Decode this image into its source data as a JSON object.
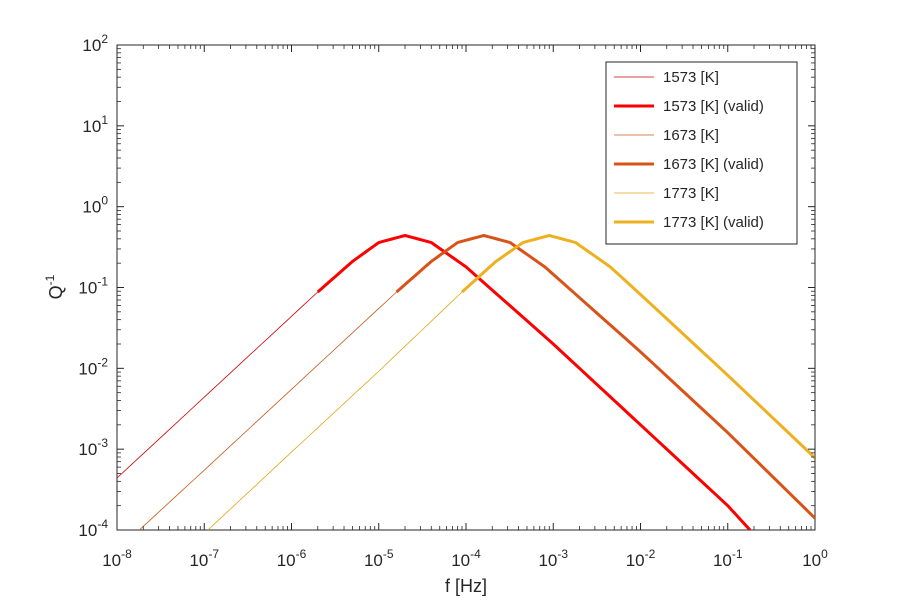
{
  "chart_data": {
    "type": "line",
    "xlabel": "f [Hz]",
    "ylabel": "Q",
    "ylabel_superscript": "-1",
    "xscale": "log",
    "yscale": "log",
    "xlim": [
      1e-08,
      1
    ],
    "ylim": [
      0.0001,
      100
    ],
    "grid": false,
    "legend_position": "top-right",
    "x_ticks": [
      {
        "base": "10",
        "exp": "-8",
        "value": 1e-08
      },
      {
        "base": "10",
        "exp": "-7",
        "value": 1e-07
      },
      {
        "base": "10",
        "exp": "-6",
        "value": 1e-06
      },
      {
        "base": "10",
        "exp": "-5",
        "value": 1e-05
      },
      {
        "base": "10",
        "exp": "-4",
        "value": 0.0001
      },
      {
        "base": "10",
        "exp": "-3",
        "value": 0.001
      },
      {
        "base": "10",
        "exp": "-2",
        "value": 0.01
      },
      {
        "base": "10",
        "exp": "-1",
        "value": 0.1
      },
      {
        "base": "10",
        "exp": "0",
        "value": 1
      }
    ],
    "y_ticks": [
      {
        "base": "10",
        "exp": "-4",
        "value": 0.0001
      },
      {
        "base": "10",
        "exp": "-3",
        "value": 0.001
      },
      {
        "base": "10",
        "exp": "-2",
        "value": 0.01
      },
      {
        "base": "10",
        "exp": "-1",
        "value": 0.1
      },
      {
        "base": "10",
        "exp": "0",
        "value": 1
      },
      {
        "base": "10",
        "exp": "1",
        "value": 10
      },
      {
        "base": "10",
        "exp": "2",
        "value": 100
      }
    ],
    "series": [
      {
        "name": "1573 [K]",
        "valid_name": "1573 [K] (valid)",
        "color": "#cc0000",
        "valid_color": "#ff0000",
        "points": [
          [
            1e-08,
            0.00044
          ],
          [
            2e-07,
            0.0088
          ],
          [
            2e-06,
            0.088
          ],
          [
            5e-06,
            0.21
          ],
          [
            1e-05,
            0.36
          ],
          [
            2e-05,
            0.44
          ],
          [
            4e-05,
            0.36
          ],
          [
            0.0001,
            0.18
          ],
          [
            0.001,
            0.02
          ],
          [
            0.01,
            0.002
          ],
          [
            0.1,
            0.0002
          ],
          [
            0.18,
            0.0001
          ]
        ],
        "valid_range": [
          2e-06,
          0.18
        ]
      },
      {
        "name": "1673 [K]",
        "valid_name": "1673 [K] (valid)",
        "color": "#c65a1a",
        "valid_color": "#d95319",
        "points": [
          [
            1.8e-08,
            0.0001
          ],
          [
            1e-07,
            0.00055
          ],
          [
            1e-06,
            0.0055
          ],
          [
            1.6e-05,
            0.088
          ],
          [
            4e-05,
            0.21
          ],
          [
            8e-05,
            0.36
          ],
          [
            0.00016,
            0.44
          ],
          [
            0.00032,
            0.36
          ],
          [
            0.0008,
            0.18
          ],
          [
            0.01,
            0.016
          ],
          [
            0.1,
            0.0016
          ],
          [
            1,
            0.00014
          ]
        ],
        "valid_range": [
          1.6e-05,
          1
        ]
      },
      {
        "name": "1773 [K]",
        "valid_name": "1773 [K] (valid)",
        "color": "#e3a51a",
        "valid_color": "#edb120",
        "points": [
          [
            1.1e-07,
            0.0001
          ],
          [
            1e-06,
            0.00092
          ],
          [
            1e-05,
            0.0092
          ],
          [
            9e-05,
            0.088
          ],
          [
            0.00022,
            0.21
          ],
          [
            0.00045,
            0.36
          ],
          [
            0.0009,
            0.44
          ],
          [
            0.0018,
            0.36
          ],
          [
            0.0045,
            0.18
          ],
          [
            0.01,
            0.082
          ],
          [
            0.1,
            0.0082
          ],
          [
            1,
            0.00078
          ]
        ],
        "valid_range": [
          9e-05,
          1
        ]
      }
    ]
  }
}
